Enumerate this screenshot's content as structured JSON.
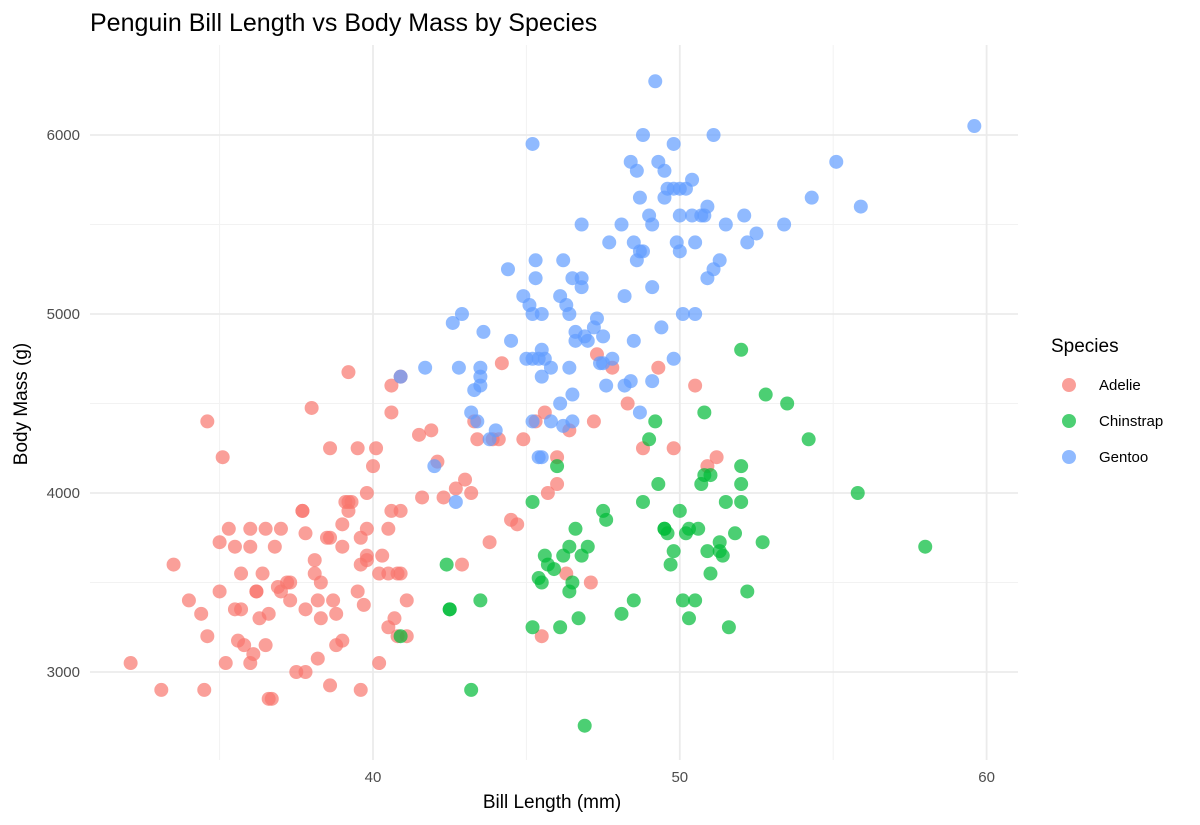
{
  "chart_data": {
    "type": "scatter",
    "title": "Penguin Bill Length vs Body Mass by Species",
    "xlabel": "Bill Length (mm)",
    "ylabel": "Body Mass (g)",
    "xlim": [
      31.5,
      61
    ],
    "ylim": [
      2550,
      6400
    ],
    "x_ticks": [
      40,
      50,
      60
    ],
    "y_ticks": [
      3000,
      4000,
      5000,
      6000
    ],
    "x_tick_labels": [
      "40",
      "50",
      "60"
    ],
    "y_tick_labels": [
      "3000",
      "4000",
      "5000",
      "6000"
    ],
    "grid": true,
    "legend": {
      "title": "Species",
      "position": "right"
    },
    "series": [
      {
        "name": "Adelie",
        "color": "#F8766D",
        "points": [
          [
            32.1,
            3050
          ],
          [
            33.1,
            2900
          ],
          [
            33.5,
            3600
          ],
          [
            34.0,
            3400
          ],
          [
            34.4,
            3325
          ],
          [
            34.5,
            2900
          ],
          [
            34.6,
            3200
          ],
          [
            34.6,
            4400
          ],
          [
            35.0,
            3450
          ],
          [
            35.1,
            4200
          ],
          [
            35.0,
            3725
          ],
          [
            35.2,
            3050
          ],
          [
            35.3,
            3800
          ],
          [
            35.5,
            3700
          ],
          [
            35.5,
            3350
          ],
          [
            35.6,
            3175
          ],
          [
            35.7,
            3350
          ],
          [
            35.7,
            3550
          ],
          [
            35.8,
            3150
          ],
          [
            36.0,
            3700
          ],
          [
            36.0,
            3800
          ],
          [
            36.0,
            3050
          ],
          [
            36.1,
            3100
          ],
          [
            36.2,
            3450
          ],
          [
            36.2,
            3450
          ],
          [
            36.3,
            3300
          ],
          [
            36.4,
            3550
          ],
          [
            36.5,
            3150
          ],
          [
            36.5,
            3800
          ],
          [
            36.6,
            3325
          ],
          [
            36.6,
            2850
          ],
          [
            36.7,
            2850
          ],
          [
            36.8,
            3700
          ],
          [
            36.9,
            3475
          ],
          [
            37.0,
            3450
          ],
          [
            37.0,
            3800
          ],
          [
            37.2,
            3500
          ],
          [
            37.3,
            3500
          ],
          [
            37.3,
            3400
          ],
          [
            37.5,
            3000
          ],
          [
            37.7,
            3900
          ],
          [
            37.7,
            3900
          ],
          [
            37.8,
            3775
          ],
          [
            37.8,
            3000
          ],
          [
            37.8,
            3350
          ],
          [
            38.0,
            4475
          ],
          [
            38.1,
            3550
          ],
          [
            38.1,
            3625
          ],
          [
            38.2,
            3075
          ],
          [
            38.2,
            3400
          ],
          [
            38.3,
            3300
          ],
          [
            38.3,
            3500
          ],
          [
            38.5,
            3750
          ],
          [
            38.6,
            4250
          ],
          [
            38.6,
            3750
          ],
          [
            38.6,
            2925
          ],
          [
            38.7,
            3400
          ],
          [
            38.8,
            3150
          ],
          [
            38.8,
            3325
          ],
          [
            39.0,
            3700
          ],
          [
            39.0,
            3175
          ],
          [
            39.0,
            3825
          ],
          [
            39.1,
            3950
          ],
          [
            39.2,
            3900
          ],
          [
            39.2,
            3950
          ],
          [
            39.2,
            4675
          ],
          [
            39.3,
            3950
          ],
          [
            39.5,
            3450
          ],
          [
            39.5,
            4250
          ],
          [
            39.6,
            2900
          ],
          [
            39.6,
            3600
          ],
          [
            39.6,
            3750
          ],
          [
            39.7,
            3375
          ],
          [
            39.8,
            4000
          ],
          [
            39.8,
            3650
          ],
          [
            39.8,
            3625
          ],
          [
            39.8,
            3800
          ],
          [
            40.0,
            4150
          ],
          [
            40.1,
            4250
          ],
          [
            40.2,
            3550
          ],
          [
            40.2,
            3050
          ],
          [
            40.3,
            3650
          ],
          [
            40.5,
            3800
          ],
          [
            40.5,
            3250
          ],
          [
            40.5,
            3550
          ],
          [
            40.6,
            4450
          ],
          [
            40.6,
            3900
          ],
          [
            40.6,
            4600
          ],
          [
            40.7,
            3300
          ],
          [
            40.8,
            3200
          ],
          [
            40.8,
            3550
          ],
          [
            40.9,
            3900
          ],
          [
            40.9,
            3550
          ],
          [
            40.9,
            4650
          ],
          [
            41.1,
            3200
          ],
          [
            41.1,
            3400
          ],
          [
            41.5,
            4325
          ],
          [
            41.6,
            3975
          ],
          [
            41.9,
            4350
          ],
          [
            42.1,
            4175
          ],
          [
            42.3,
            3975
          ],
          [
            42.7,
            4025
          ],
          [
            42.9,
            3600
          ],
          [
            43.0,
            4075
          ],
          [
            43.2,
            4000
          ],
          [
            43.3,
            4400
          ],
          [
            43.4,
            4300
          ],
          [
            43.8,
            3725
          ],
          [
            43.9,
            4300
          ],
          [
            44.1,
            4300
          ],
          [
            44.2,
            4725
          ],
          [
            44.5,
            3850
          ],
          [
            44.7,
            3825
          ],
          [
            44.9,
            4300
          ],
          [
            45.3,
            4400
          ],
          [
            45.5,
            3200
          ],
          [
            45.6,
            4450
          ],
          [
            45.7,
            4000
          ],
          [
            46.0,
            4050
          ],
          [
            46.3,
            3550
          ],
          [
            46.4,
            4350
          ],
          [
            47.1,
            3500
          ],
          [
            47.2,
            4400
          ],
          [
            47.3,
            4775
          ],
          [
            47.8,
            4700
          ],
          [
            48.3,
            4500
          ],
          [
            48.8,
            4250
          ],
          [
            49.3,
            4700
          ],
          [
            49.8,
            4250
          ],
          [
            50.5,
            4600
          ],
          [
            50.9,
            4150
          ],
          [
            51.2,
            4200
          ],
          [
            46.0,
            4200
          ]
        ]
      },
      {
        "name": "Chinstrap",
        "color": "#00BA38",
        "points": [
          [
            40.9,
            3200
          ],
          [
            42.4,
            3600
          ],
          [
            42.5,
            3350
          ],
          [
            42.5,
            3350
          ],
          [
            43.2,
            2900
          ],
          [
            43.5,
            3400
          ],
          [
            45.2,
            3250
          ],
          [
            45.2,
            3950
          ],
          [
            45.4,
            3525
          ],
          [
            45.5,
            3500
          ],
          [
            45.6,
            3650
          ],
          [
            45.7,
            3600
          ],
          [
            45.9,
            3575
          ],
          [
            46.0,
            4150
          ],
          [
            46.1,
            3250
          ],
          [
            46.2,
            3650
          ],
          [
            46.4,
            3700
          ],
          [
            46.4,
            3450
          ],
          [
            46.5,
            3500
          ],
          [
            46.6,
            3800
          ],
          [
            46.7,
            3300
          ],
          [
            46.8,
            3650
          ],
          [
            46.9,
            2700
          ],
          [
            47.0,
            3700
          ],
          [
            47.5,
            3900
          ],
          [
            47.6,
            3850
          ],
          [
            48.1,
            3325
          ],
          [
            48.5,
            3400
          ],
          [
            48.8,
            3950
          ],
          [
            49.0,
            4300
          ],
          [
            49.2,
            4400
          ],
          [
            49.3,
            4050
          ],
          [
            49.5,
            3800
          ],
          [
            49.6,
            3775
          ],
          [
            49.7,
            3600
          ],
          [
            49.8,
            3675
          ],
          [
            50.0,
            3900
          ],
          [
            50.1,
            3400
          ],
          [
            50.2,
            3775
          ],
          [
            50.3,
            3800
          ],
          [
            50.3,
            3300
          ],
          [
            50.5,
            3400
          ],
          [
            50.6,
            3800
          ],
          [
            50.7,
            4050
          ],
          [
            50.8,
            4100
          ],
          [
            50.8,
            4450
          ],
          [
            50.9,
            3675
          ],
          [
            51.0,
            4100
          ],
          [
            51.0,
            3550
          ],
          [
            51.3,
            3675
          ],
          [
            51.3,
            3725
          ],
          [
            51.4,
            3650
          ],
          [
            51.5,
            3950
          ],
          [
            51.6,
            3250
          ],
          [
            51.8,
            3775
          ],
          [
            52.0,
            3950
          ],
          [
            52.0,
            4800
          ],
          [
            52.0,
            4050
          ],
          [
            52.2,
            3450
          ],
          [
            52.7,
            3725
          ],
          [
            52.8,
            4550
          ],
          [
            53.5,
            4500
          ],
          [
            54.2,
            4300
          ],
          [
            55.8,
            4000
          ],
          [
            58.0,
            3700
          ],
          [
            52.0,
            4150
          ],
          [
            49.5,
            3800
          ]
        ]
      },
      {
        "name": "Gentoo",
        "color": "#619CFF",
        "points": [
          [
            40.9,
            4650
          ],
          [
            41.7,
            4700
          ],
          [
            42.0,
            4150
          ],
          [
            42.6,
            4950
          ],
          [
            42.7,
            3950
          ],
          [
            42.8,
            4700
          ],
          [
            42.9,
            5000
          ],
          [
            43.2,
            4450
          ],
          [
            43.3,
            4575
          ],
          [
            43.4,
            4400
          ],
          [
            43.5,
            4600
          ],
          [
            43.5,
            4700
          ],
          [
            43.6,
            4900
          ],
          [
            43.5,
            4650
          ],
          [
            43.8,
            4300
          ],
          [
            44.0,
            4350
          ],
          [
            44.4,
            5250
          ],
          [
            44.5,
            4850
          ],
          [
            44.9,
            5100
          ],
          [
            45.0,
            4750
          ],
          [
            45.1,
            5050
          ],
          [
            45.2,
            4750
          ],
          [
            45.2,
            5000
          ],
          [
            45.2,
            4400
          ],
          [
            45.2,
            5950
          ],
          [
            45.3,
            5300
          ],
          [
            45.3,
            5200
          ],
          [
            45.4,
            4750
          ],
          [
            45.4,
            4200
          ],
          [
            45.5,
            4800
          ],
          [
            45.5,
            4650
          ],
          [
            45.5,
            4200
          ],
          [
            45.5,
            5000
          ],
          [
            45.6,
            4750
          ],
          [
            45.8,
            4700
          ],
          [
            45.8,
            4400
          ],
          [
            46.1,
            4500
          ],
          [
            46.1,
            5100
          ],
          [
            46.2,
            5300
          ],
          [
            46.2,
            4375
          ],
          [
            46.3,
            5050
          ],
          [
            46.4,
            4700
          ],
          [
            46.4,
            5000
          ],
          [
            46.5,
            4550
          ],
          [
            46.5,
            4400
          ],
          [
            46.5,
            5200
          ],
          [
            46.6,
            4900
          ],
          [
            46.6,
            4850
          ],
          [
            46.8,
            5150
          ],
          [
            46.8,
            5500
          ],
          [
            46.8,
            5200
          ],
          [
            46.9,
            4875
          ],
          [
            47.0,
            4850
          ],
          [
            47.4,
            4725
          ],
          [
            47.5,
            4875
          ],
          [
            47.5,
            4725
          ],
          [
            47.3,
            4975
          ],
          [
            47.2,
            4925
          ],
          [
            47.6,
            4600
          ],
          [
            47.7,
            5400
          ],
          [
            47.8,
            4750
          ],
          [
            48.1,
            5500
          ],
          [
            48.2,
            4600
          ],
          [
            48.2,
            5100
          ],
          [
            48.4,
            4625
          ],
          [
            48.4,
            5850
          ],
          [
            48.5,
            4850
          ],
          [
            48.5,
            5400
          ],
          [
            48.6,
            5300
          ],
          [
            48.6,
            5800
          ],
          [
            48.7,
            5350
          ],
          [
            48.7,
            4450
          ],
          [
            48.7,
            5650
          ],
          [
            48.8,
            5350
          ],
          [
            48.8,
            6000
          ],
          [
            49.0,
            5550
          ],
          [
            49.1,
            5500
          ],
          [
            49.1,
            4625
          ],
          [
            49.1,
            5150
          ],
          [
            49.2,
            6300
          ],
          [
            49.3,
            5850
          ],
          [
            49.4,
            4925
          ],
          [
            49.5,
            5800
          ],
          [
            49.5,
            5650
          ],
          [
            49.6,
            5700
          ],
          [
            49.8,
            5950
          ],
          [
            49.8,
            4750
          ],
          [
            49.8,
            5700
          ],
          [
            49.9,
            5400
          ],
          [
            50.0,
            5700
          ],
          [
            50.0,
            5550
          ],
          [
            50.0,
            5350
          ],
          [
            50.1,
            5000
          ],
          [
            50.2,
            5700
          ],
          [
            50.4,
            5750
          ],
          [
            50.4,
            5550
          ],
          [
            50.5,
            5000
          ],
          [
            50.5,
            5400
          ],
          [
            50.7,
            5550
          ],
          [
            50.8,
            5550
          ],
          [
            50.9,
            5200
          ],
          [
            50.9,
            5600
          ],
          [
            51.1,
            5250
          ],
          [
            51.1,
            6000
          ],
          [
            51.3,
            5300
          ],
          [
            51.5,
            5500
          ],
          [
            52.1,
            5550
          ],
          [
            52.2,
            5400
          ],
          [
            52.5,
            5450
          ],
          [
            53.4,
            5500
          ],
          [
            54.3,
            5650
          ],
          [
            55.1,
            5850
          ],
          [
            55.9,
            5600
          ],
          [
            59.6,
            6050
          ]
        ]
      }
    ]
  }
}
